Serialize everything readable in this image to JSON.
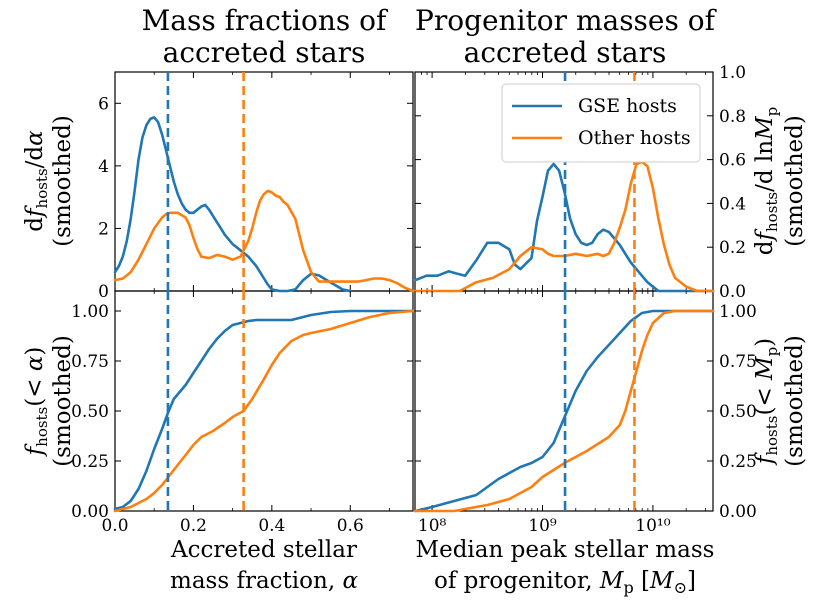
{
  "chart_data": [
    {
      "type": "line",
      "panel": "top-left",
      "title_lines": [
        "Mass fractions of",
        "accreted stars"
      ],
      "ylabel_lines": [
        "d f_hosts/dα",
        "(smoothed)"
      ],
      "xlim": [
        0.0,
        0.76
      ],
      "ylim": [
        0,
        7
      ],
      "yticks": [
        "0",
        "2",
        "4",
        "6"
      ],
      "vlines": [
        {
          "x": 0.135,
          "color": "#1f77b4"
        },
        {
          "x": 0.328,
          "color": "#ff7f0e"
        }
      ],
      "series": [
        {
          "name": "GSE hosts",
          "color": "#1f77b4",
          "x": [
            0,
            0.01,
            0.02,
            0.03,
            0.04,
            0.05,
            0.06,
            0.07,
            0.08,
            0.09,
            0.1,
            0.11,
            0.12,
            0.13,
            0.14,
            0.15,
            0.16,
            0.17,
            0.18,
            0.19,
            0.2,
            0.21,
            0.22,
            0.23,
            0.24,
            0.25,
            0.26,
            0.27,
            0.28,
            0.29,
            0.3,
            0.31,
            0.32,
            0.33,
            0.34,
            0.35,
            0.36,
            0.37,
            0.38,
            0.39,
            0.4,
            0.42,
            0.44,
            0.46,
            0.47,
            0.48,
            0.5,
            0.52,
            0.54,
            0.56,
            0.58,
            0.6
          ],
          "y": [
            0.6,
            0.8,
            1.1,
            1.6,
            2.3,
            3.2,
            4.2,
            4.9,
            5.3,
            5.5,
            5.55,
            5.4,
            5.0,
            4.5,
            4.0,
            3.5,
            3.1,
            2.8,
            2.6,
            2.5,
            2.5,
            2.6,
            2.7,
            2.75,
            2.6,
            2.4,
            2.2,
            2.0,
            1.8,
            1.65,
            1.5,
            1.4,
            1.3,
            1.2,
            1.1,
            0.95,
            0.8,
            0.6,
            0.4,
            0.2,
            0.05,
            0.0,
            0.0,
            0.05,
            0.2,
            0.35,
            0.55,
            0.5,
            0.35,
            0.2,
            0.05,
            0.0
          ]
        },
        {
          "name": "Other hosts",
          "color": "#ff7f0e",
          "x": [
            0,
            0.02,
            0.04,
            0.06,
            0.08,
            0.1,
            0.12,
            0.13,
            0.14,
            0.15,
            0.16,
            0.18,
            0.19,
            0.2,
            0.21,
            0.22,
            0.24,
            0.26,
            0.28,
            0.3,
            0.32,
            0.34,
            0.35,
            0.36,
            0.37,
            0.38,
            0.39,
            0.4,
            0.41,
            0.42,
            0.43,
            0.44,
            0.46,
            0.47,
            0.48,
            0.5,
            0.52,
            0.54,
            0.56,
            0.58,
            0.6,
            0.62,
            0.64,
            0.66,
            0.68,
            0.7,
            0.72,
            0.74,
            0.76
          ],
          "y": [
            0.35,
            0.4,
            0.6,
            1.0,
            1.5,
            2.0,
            2.35,
            2.45,
            2.5,
            2.5,
            2.5,
            2.35,
            2.1,
            1.7,
            1.35,
            1.1,
            1.05,
            1.15,
            1.1,
            1.0,
            1.1,
            1.6,
            2.0,
            2.5,
            2.9,
            3.1,
            3.2,
            3.15,
            3.05,
            3.0,
            2.85,
            2.75,
            2.3,
            1.8,
            1.3,
            0.6,
            0.3,
            0.3,
            0.3,
            0.3,
            0.3,
            0.3,
            0.35,
            0.4,
            0.4,
            0.35,
            0.25,
            0.1,
            0.0
          ]
        }
      ]
    },
    {
      "type": "line",
      "panel": "top-right",
      "title_lines": [
        "Progenitor masses of",
        "accreted stars"
      ],
      "ylabel_lines": [
        "d f_hosts/d ln M_p",
        "(smoothed)"
      ],
      "xscale": "log",
      "xlim": [
        70000000,
        35000000000
      ],
      "ylim": [
        0,
        1.0
      ],
      "yticks": [
        "0.0",
        "0.2",
        "0.4",
        "0.6",
        "0.8",
        "1.0"
      ],
      "vlines": [
        {
          "x": 1600000000,
          "color": "#1f77b4"
        },
        {
          "x": 6800000000,
          "color": "#ff7f0e"
        }
      ],
      "legend": {
        "location": "upper right",
        "entries": [
          "GSE hosts",
          "Other hosts"
        ]
      },
      "series": [
        {
          "name": "GSE hosts",
          "color": "#1f77b4",
          "logx": [
            7.85,
            7.95,
            8.05,
            8.15,
            8.22,
            8.3,
            8.4,
            8.5,
            8.6,
            8.7,
            8.75,
            8.8,
            8.9,
            8.95,
            9.0,
            9.05,
            9.1,
            9.15,
            9.2,
            9.25,
            9.3,
            9.35,
            9.4,
            9.45,
            9.5,
            9.55,
            9.6,
            9.65,
            9.7,
            9.75,
            9.8,
            9.85,
            9.9,
            9.95,
            10.0,
            10.05,
            10.1,
            10.2,
            10.3,
            10.45,
            10.55
          ],
          "y": [
            0.05,
            0.07,
            0.07,
            0.09,
            0.08,
            0.07,
            0.14,
            0.22,
            0.22,
            0.19,
            0.12,
            0.1,
            0.15,
            0.32,
            0.43,
            0.55,
            0.58,
            0.55,
            0.45,
            0.33,
            0.26,
            0.22,
            0.21,
            0.22,
            0.26,
            0.28,
            0.27,
            0.24,
            0.21,
            0.17,
            0.13,
            0.1,
            0.07,
            0.04,
            0.02,
            0.0,
            0.0,
            0.0,
            0.0,
            0.0,
            0.0
          ]
        },
        {
          "name": "Other hosts",
          "color": "#ff7f0e",
          "logx": [
            7.85,
            8.0,
            8.15,
            8.25,
            8.4,
            8.55,
            8.7,
            8.8,
            8.9,
            9.0,
            9.05,
            9.1,
            9.2,
            9.3,
            9.4,
            9.5,
            9.55,
            9.6,
            9.65,
            9.7,
            9.75,
            9.8,
            9.85,
            9.9,
            9.95,
            10.0,
            10.05,
            10.1,
            10.15,
            10.2,
            10.3,
            10.4,
            10.55
          ],
          "y": [
            0.0,
            0.0,
            0.0,
            0.0,
            0.04,
            0.06,
            0.1,
            0.16,
            0.2,
            0.19,
            0.17,
            0.16,
            0.16,
            0.17,
            0.16,
            0.17,
            0.16,
            0.17,
            0.22,
            0.29,
            0.37,
            0.49,
            0.58,
            0.59,
            0.57,
            0.47,
            0.33,
            0.21,
            0.12,
            0.06,
            0.02,
            0.0,
            0.0
          ]
        }
      ]
    },
    {
      "type": "line",
      "panel": "bottom-left",
      "xlabel_lines": [
        "Accreted stellar",
        "mass fraction, α"
      ],
      "ylabel_lines": [
        "f_hosts(< α)",
        "(smoothed)"
      ],
      "xlim": [
        0.0,
        0.76
      ],
      "ylim": [
        0,
        1.1
      ],
      "xticks": [
        "0.0",
        "0.2",
        "0.4",
        "0.6"
      ],
      "yticks": [
        "0.00",
        "0.25",
        "0.50",
        "0.75",
        "1.00"
      ],
      "vlines": [
        {
          "x": 0.135,
          "color": "#1f77b4"
        },
        {
          "x": 0.328,
          "color": "#ff7f0e"
        }
      ],
      "series": [
        {
          "name": "GSE hosts",
          "color": "#1f77b4",
          "x": [
            0,
            0.02,
            0.04,
            0.06,
            0.08,
            0.1,
            0.12,
            0.135,
            0.15,
            0.18,
            0.2,
            0.22,
            0.24,
            0.26,
            0.28,
            0.3,
            0.32,
            0.34,
            0.36,
            0.38,
            0.4,
            0.45,
            0.5,
            0.55,
            0.6,
            0.65,
            0.7,
            0.76
          ],
          "y": [
            0.01,
            0.02,
            0.05,
            0.11,
            0.2,
            0.31,
            0.41,
            0.49,
            0.56,
            0.63,
            0.69,
            0.75,
            0.81,
            0.86,
            0.9,
            0.93,
            0.94,
            0.95,
            0.955,
            0.955,
            0.955,
            0.955,
            0.98,
            0.995,
            1.0,
            1.0,
            1.0,
            1.0
          ]
        },
        {
          "name": "Other hosts",
          "color": "#ff7f0e",
          "x": [
            0,
            0.04,
            0.08,
            0.1,
            0.12,
            0.14,
            0.16,
            0.18,
            0.2,
            0.22,
            0.25,
            0.28,
            0.3,
            0.328,
            0.35,
            0.38,
            0.4,
            0.42,
            0.45,
            0.48,
            0.5,
            0.55,
            0.6,
            0.65,
            0.7,
            0.76
          ],
          "y": [
            0.0,
            0.02,
            0.06,
            0.09,
            0.13,
            0.18,
            0.23,
            0.28,
            0.33,
            0.37,
            0.4,
            0.44,
            0.47,
            0.5,
            0.56,
            0.66,
            0.73,
            0.79,
            0.85,
            0.88,
            0.89,
            0.91,
            0.94,
            0.97,
            0.99,
            1.0
          ]
        }
      ]
    },
    {
      "type": "line",
      "panel": "bottom-right",
      "xlabel_lines": [
        "Median peak stellar mass",
        "of progenitor, M_p [M_⊙]"
      ],
      "ylabel_lines": [
        "f_hosts(< M_p)",
        "(smoothed)"
      ],
      "xscale": "log",
      "xlim": [
        70000000,
        35000000000
      ],
      "ylim": [
        0,
        1.1
      ],
      "xticks": [
        "10⁸",
        "10⁹",
        "10¹⁰"
      ],
      "yticks": [
        "0.00",
        "0.25",
        "0.50",
        "0.75",
        "1.00"
      ],
      "vlines": [
        {
          "x": 1600000000,
          "color": "#1f77b4"
        },
        {
          "x": 6800000000,
          "color": "#ff7f0e"
        }
      ],
      "series": [
        {
          "name": "GSE hosts",
          "color": "#1f77b4",
          "logx": [
            7.85,
            8.0,
            8.2,
            8.4,
            8.6,
            8.8,
            8.9,
            9.0,
            9.1,
            9.2,
            9.3,
            9.4,
            9.5,
            9.6,
            9.7,
            9.8,
            9.9,
            10.0,
            10.2,
            10.55
          ],
          "y": [
            0.0,
            0.02,
            0.05,
            0.08,
            0.16,
            0.22,
            0.24,
            0.27,
            0.34,
            0.47,
            0.6,
            0.7,
            0.77,
            0.83,
            0.89,
            0.95,
            0.99,
            1.0,
            1.0,
            1.0
          ]
        },
        {
          "name": "Other hosts",
          "color": "#ff7f0e",
          "logx": [
            7.85,
            8.2,
            8.5,
            8.7,
            8.9,
            9.0,
            9.2,
            9.4,
            9.6,
            9.7,
            9.75,
            9.8,
            9.85,
            9.9,
            9.95,
            10.0,
            10.1,
            10.2,
            10.55
          ],
          "y": [
            0.0,
            0.0,
            0.03,
            0.06,
            0.12,
            0.17,
            0.24,
            0.3,
            0.37,
            0.43,
            0.5,
            0.6,
            0.7,
            0.8,
            0.88,
            0.94,
            0.99,
            1.0,
            1.0
          ]
        }
      ]
    }
  ],
  "vline_colors": {
    "gse": "#1f77b4",
    "other": "#ff7f0e"
  }
}
